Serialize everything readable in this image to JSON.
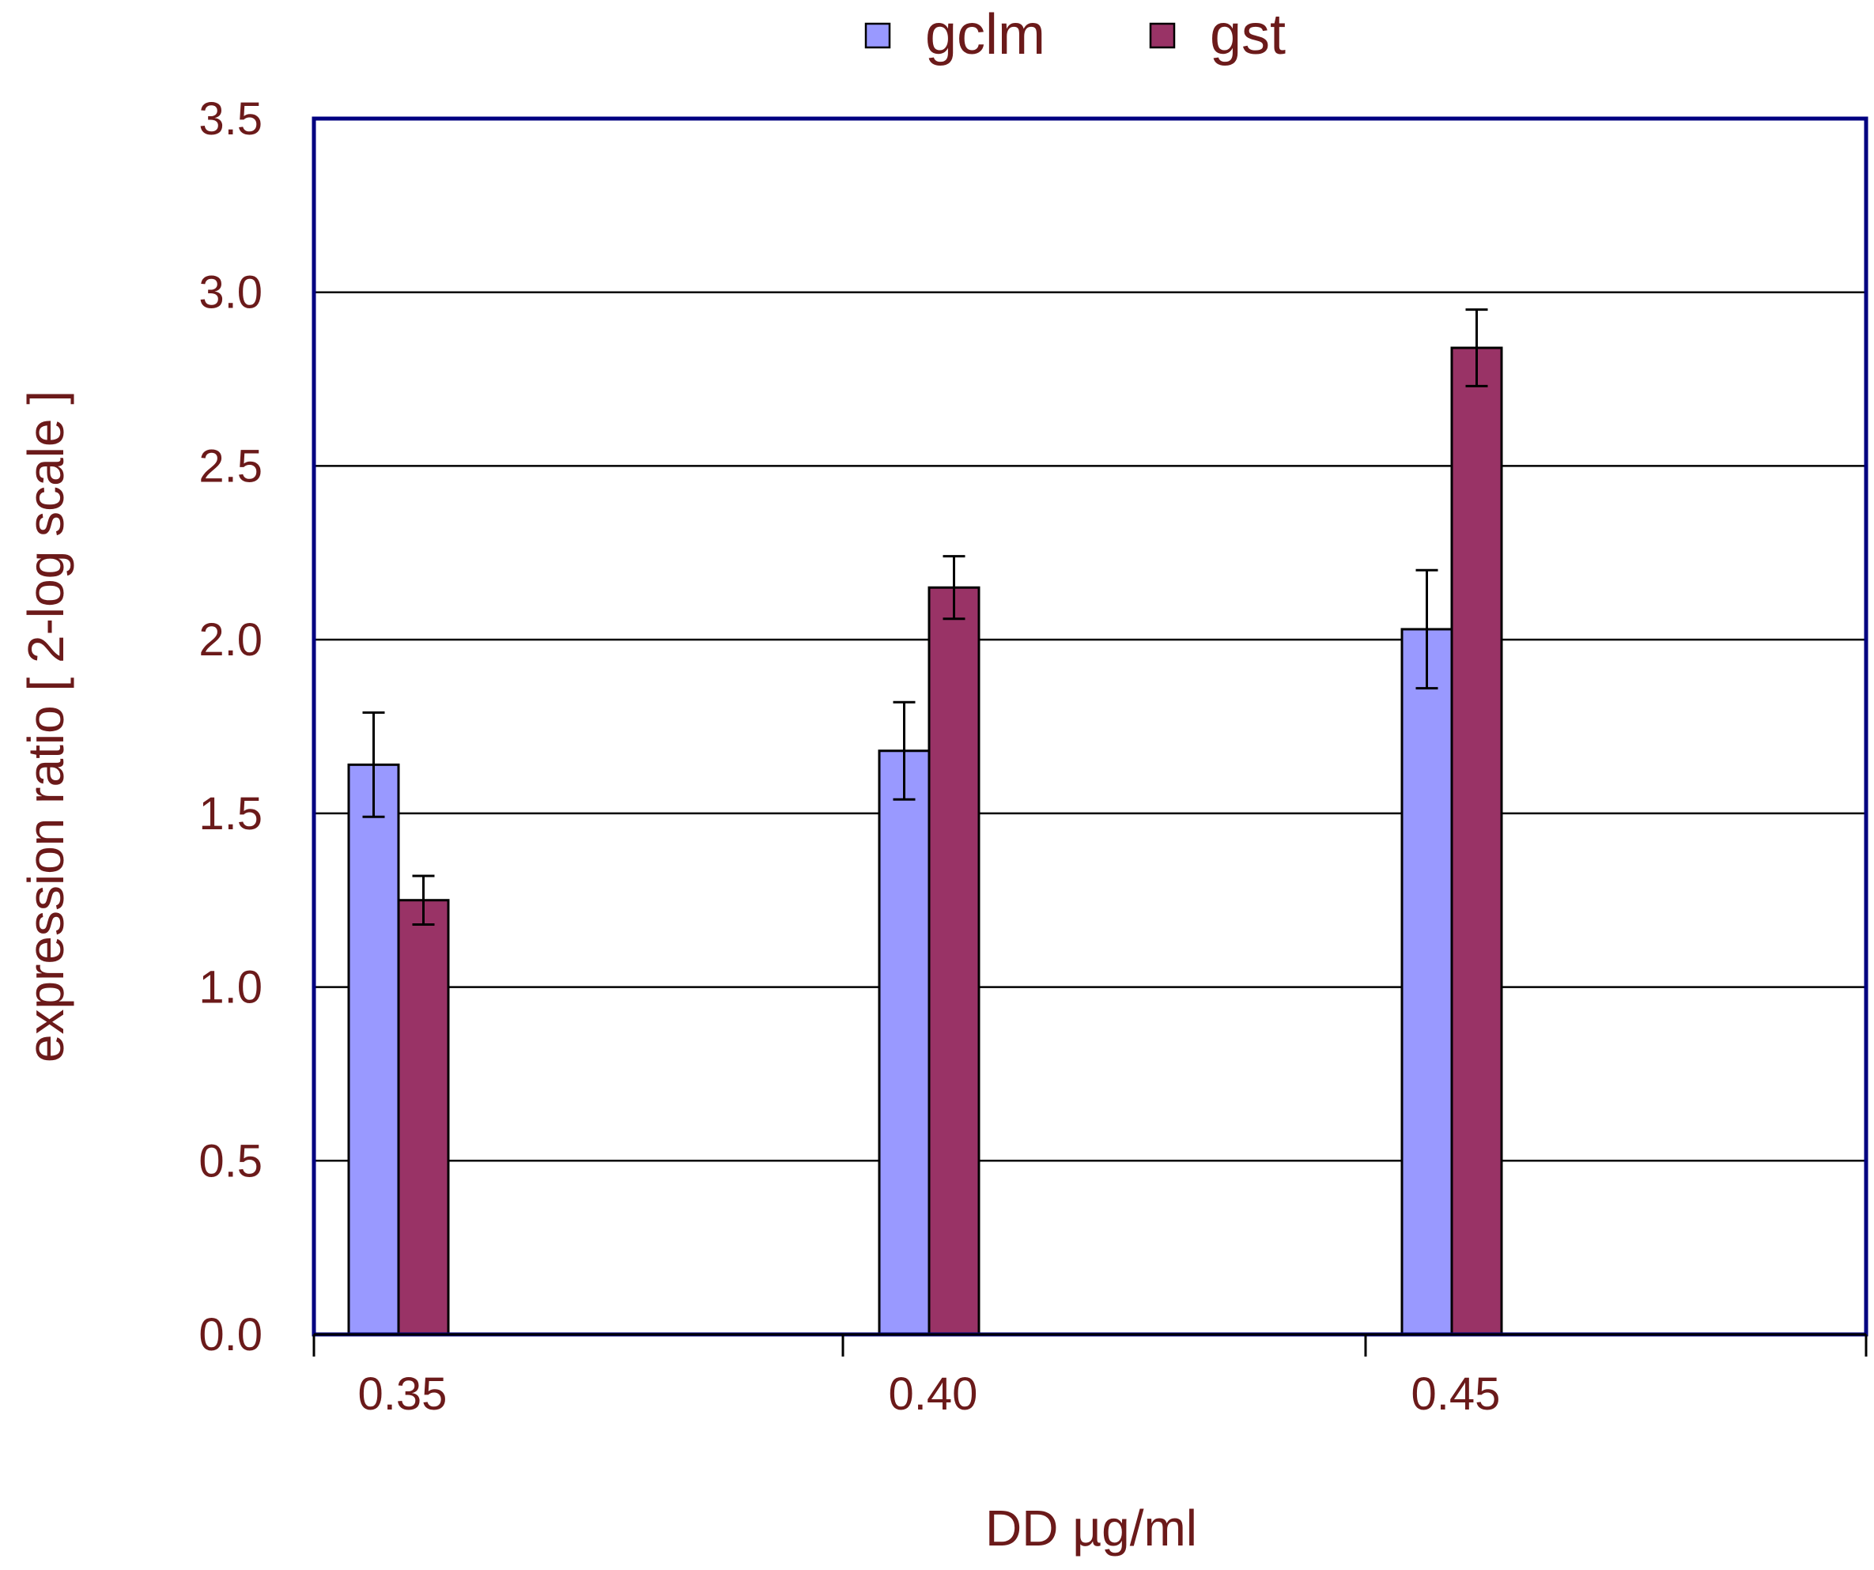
{
  "chart_data": {
    "type": "bar",
    "title": "",
    "xlabel": "DD µg/ml",
    "ylabel": "expression ratio [ 2-log scale ]",
    "categories": [
      "0.35",
      "0.40",
      "0.45"
    ],
    "ylim": [
      0,
      3.5
    ],
    "yticks": [
      "0.0",
      "0.5",
      "1.0",
      "1.5",
      "2.0",
      "2.5",
      "3.0",
      "3.5"
    ],
    "grid": true,
    "legend_position": "top-center",
    "series": [
      {
        "name": "gclm",
        "color": "#9999ff",
        "values": [
          1.64,
          1.68,
          2.03
        ],
        "errors": [
          0.15,
          0.14,
          0.17
        ]
      },
      {
        "name": "gst",
        "color": "#993366",
        "values": [
          1.25,
          2.15,
          2.84
        ],
        "errors": [
          0.07,
          0.09,
          0.11
        ]
      }
    ],
    "colors": {
      "text": "#6b1a1a",
      "frame": "#000080",
      "grid": "#000000"
    }
  }
}
